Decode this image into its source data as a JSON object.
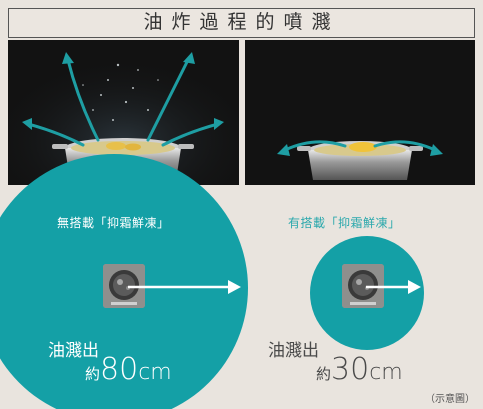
{
  "title": "油炸過程的噴濺",
  "left_panel": {
    "label": "無搭載「抑霜鮮凍」",
    "splash_text": "油濺出",
    "distance_prefix": "約",
    "distance_value": "80",
    "distance_unit": "cm"
  },
  "right_panel": {
    "label": "有搭載「抑霜鮮凍」",
    "splash_text": "油濺出",
    "distance_prefix": "約",
    "distance_value": "30",
    "distance_unit": "cm"
  },
  "note": "（示意圖）",
  "colors": {
    "accent": "#14a0a6",
    "arrow": "#1e9ea3",
    "background": "#e9e4de"
  },
  "icons": [
    "pot-illustration",
    "arrow-right-icon",
    "frozen-food-chip"
  ]
}
